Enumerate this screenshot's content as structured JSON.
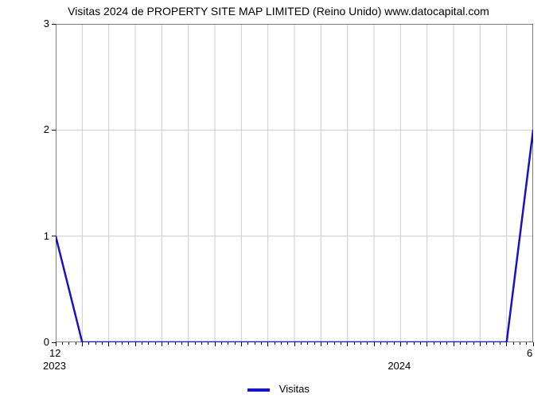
{
  "title": "Visitas 2024 de PROPERTY SITE MAP LIMITED (Reino Unido) www.datocapital.com",
  "chart": {
    "type": "line",
    "background_color": "#ffffff",
    "border_color": "#000000",
    "border_width": 1,
    "grid_color": "#cccccc",
    "grid_width": 1,
    "ylim": [
      0,
      3
    ],
    "yticks": [
      0,
      1,
      2,
      3
    ],
    "ytick_labels": [
      "0",
      "1",
      "2",
      "3"
    ],
    "x_major_ticks": [
      0,
      1,
      2,
      3,
      4,
      5,
      6,
      7,
      8,
      9,
      10,
      11,
      12,
      13,
      14,
      15,
      16,
      17,
      18
    ],
    "x_tick_top_labels": {
      "0": "12",
      "18": "6"
    },
    "x_tick_sub_labels": {
      "0": "2023",
      "13": "2024"
    },
    "x_minor_per_major": 3,
    "minor_tick_length": 3,
    "major_tick_length": 5,
    "axis_font_size": 13,
    "series": {
      "name": "Visitas",
      "color": "#1613c3",
      "line_width": 2.5,
      "x": [
        0,
        1,
        2,
        3,
        4,
        5,
        6,
        7,
        8,
        9,
        10,
        11,
        12,
        13,
        14,
        15,
        16,
        17,
        18
      ],
      "y": [
        1,
        0,
        0,
        0,
        0,
        0,
        0,
        0,
        0,
        0,
        0,
        0,
        0,
        0,
        0,
        0,
        0,
        0,
        2
      ]
    },
    "legend": {
      "label": "Visitas",
      "swatch_color": "#1613c3"
    }
  }
}
